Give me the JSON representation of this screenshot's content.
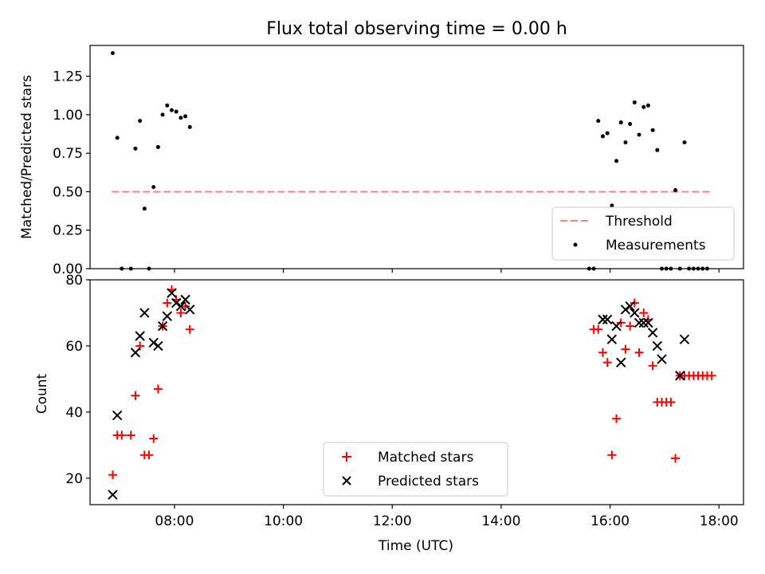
{
  "figure": {
    "title": "Flux total observing time = 0.00 h"
  },
  "chart_data": [
    {
      "type": "scatter",
      "panel": "top",
      "title": "Flux total observing time = 0.00 h",
      "xlabel": "",
      "ylabel": "Matched/Predicted stars",
      "xlim": [
        "06:27",
        "18:27"
      ],
      "ylim": [
        0,
        1.45
      ],
      "yticks": [
        0.0,
        0.25,
        0.5,
        0.75,
        1.0,
        1.25
      ],
      "ytick_labels": [
        "0.00",
        "0.25",
        "0.50",
        "0.75",
        "1.00",
        "1.25"
      ],
      "grid": false,
      "legend": {
        "placement": "lower right",
        "entries": [
          "Threshold",
          "Measurements"
        ]
      },
      "threshold": {
        "name": "Threshold",
        "value": 0.5,
        "x_start": "06:51",
        "x_end": "17:50",
        "color": "#ff8080",
        "style": "dashed"
      },
      "measurements": {
        "name": "Measurements",
        "color": "#000000",
        "x": [
          "06:52",
          "06:57",
          "07:02",
          "07:12",
          "07:17",
          "07:22",
          "07:27",
          "07:32",
          "07:37",
          "07:42",
          "07:47",
          "07:52",
          "07:57",
          "08:02",
          "08:07",
          "08:12",
          "08:17",
          "15:47",
          "15:52",
          "15:57",
          "16:02",
          "16:07",
          "16:12",
          "16:17",
          "16:22",
          "16:27",
          "16:32",
          "16:37",
          "16:42",
          "16:47",
          "16:52",
          "16:57",
          "17:02",
          "17:07",
          "17:12",
          "17:17",
          "17:22",
          "17:27",
          "17:32",
          "17:37",
          "17:42",
          "17:47",
          "15:42",
          "15:37"
        ],
        "y": [
          1.4,
          0.85,
          0.0,
          0.0,
          0.78,
          0.96,
          0.39,
          0.0,
          0.53,
          0.79,
          1.0,
          1.06,
          1.03,
          1.02,
          0.98,
          0.99,
          0.92,
          0.96,
          0.86,
          0.88,
          0.41,
          0.7,
          0.95,
          0.82,
          0.94,
          1.08,
          0.87,
          1.05,
          1.06,
          0.9,
          0.77,
          0.0,
          0.0,
          0.0,
          0.51,
          0.0,
          0.82,
          0.0,
          0.0,
          0.0,
          0.0,
          0.0,
          0.0,
          0.0
        ]
      }
    },
    {
      "type": "scatter",
      "panel": "bottom",
      "xlabel": "Time (UTC)",
      "ylabel": "Count",
      "xlim": [
        "06:27",
        "18:27"
      ],
      "xticks": [
        "08:00",
        "10:00",
        "12:00",
        "14:00",
        "16:00",
        "18:00"
      ],
      "ylim": [
        12,
        80
      ],
      "yticks": [
        20,
        40,
        60,
        80
      ],
      "grid": false,
      "legend": {
        "placement": "lower center",
        "entries": [
          "Matched stars",
          "Predicted stars"
        ]
      },
      "series": [
        {
          "name": "Matched stars",
          "marker": "+",
          "color": "#ff0000",
          "x": [
            "06:52",
            "06:57",
            "07:02",
            "07:12",
            "07:17",
            "07:22",
            "07:27",
            "07:32",
            "07:37",
            "07:42",
            "07:47",
            "07:52",
            "07:57",
            "08:02",
            "08:07",
            "08:12",
            "08:17",
            "15:42",
            "15:47",
            "15:52",
            "15:57",
            "16:02",
            "16:07",
            "16:12",
            "16:17",
            "16:22",
            "16:27",
            "16:32",
            "16:37",
            "16:42",
            "16:47",
            "16:52",
            "16:57",
            "17:02",
            "17:07",
            "17:12",
            "17:17",
            "17:22",
            "17:27",
            "17:32",
            "17:37",
            "17:42",
            "17:47",
            "17:52"
          ],
          "y": [
            21,
            33,
            33,
            33,
            45,
            60,
            27,
            27,
            32,
            47,
            66,
            73,
            77,
            74,
            70,
            72,
            65,
            65,
            65,
            58,
            55,
            27,
            38,
            67,
            59,
            66,
            73,
            58,
            70,
            68,
            54,
            43,
            43,
            43,
            43,
            26,
            51,
            51,
            51,
            51,
            51,
            51,
            51,
            51
          ]
        },
        {
          "name": "Predicted stars",
          "marker": "x",
          "color": "#000000",
          "x": [
            "06:52",
            "06:57",
            "07:17",
            "07:22",
            "07:27",
            "07:37",
            "07:42",
            "07:47",
            "07:52",
            "07:57",
            "08:02",
            "08:07",
            "08:12",
            "08:17",
            "15:52",
            "15:57",
            "16:02",
            "16:07",
            "16:12",
            "16:17",
            "16:22",
            "16:27",
            "16:32",
            "16:37",
            "16:42",
            "16:47",
            "16:52",
            "16:57",
            "17:17",
            "17:22"
          ],
          "y": [
            15,
            39,
            58,
            63,
            70,
            61,
            60,
            66,
            69,
            76,
            73,
            72,
            74,
            71,
            68,
            68,
            62,
            66,
            55,
            71,
            72,
            70,
            67,
            67,
            67,
            64,
            60,
            56,
            51,
            62
          ]
        }
      ]
    }
  ]
}
